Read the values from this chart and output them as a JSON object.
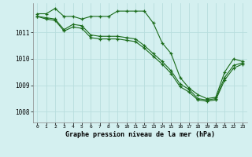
{
  "title": "Graphe pression niveau de la mer (hPa)",
  "background_color": "#d4f0f0",
  "grid_color": "#b8dede",
  "line_color": "#1a6b1a",
  "marker_color": "#1a6b1a",
  "xlim": [
    -0.5,
    23.5
  ],
  "ylim": [
    1007.6,
    1012.1
  ],
  "yticks": [
    1008,
    1009,
    1010,
    1011
  ],
  "xticks": [
    0,
    1,
    2,
    3,
    4,
    5,
    6,
    7,
    8,
    9,
    10,
    11,
    12,
    13,
    14,
    15,
    16,
    17,
    18,
    19,
    20,
    21,
    22,
    23
  ],
  "series": [
    [
      1011.7,
      1011.7,
      1011.9,
      1011.6,
      1011.6,
      1011.5,
      1011.6,
      1011.6,
      1011.6,
      1011.8,
      1011.8,
      1011.8,
      1011.8,
      1011.35,
      1010.6,
      1010.2,
      1009.3,
      1008.9,
      1008.65,
      1008.5,
      1008.55,
      1009.5,
      1010.0,
      1009.9
    ],
    [
      1011.6,
      1011.55,
      1011.5,
      1011.1,
      1011.3,
      1011.25,
      1010.9,
      1010.85,
      1010.85,
      1010.85,
      1010.8,
      1010.75,
      1010.5,
      1010.2,
      1009.9,
      1009.55,
      1009.05,
      1008.85,
      1008.5,
      1008.45,
      1008.5,
      1009.3,
      1009.75,
      1009.85
    ],
    [
      1011.6,
      1011.5,
      1011.45,
      1011.05,
      1011.2,
      1011.15,
      1010.8,
      1010.75,
      1010.75,
      1010.75,
      1010.7,
      1010.65,
      1010.4,
      1010.1,
      1009.8,
      1009.45,
      1008.95,
      1008.75,
      1008.45,
      1008.4,
      1008.45,
      1009.2,
      1009.65,
      1009.8
    ]
  ]
}
